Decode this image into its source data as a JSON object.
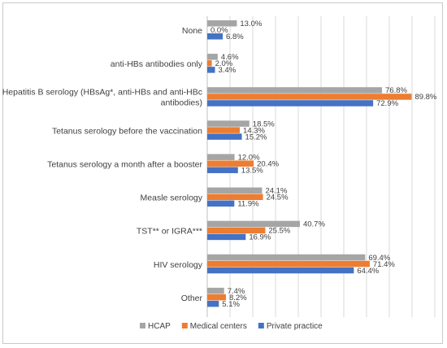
{
  "chart_data": {
    "type": "bar",
    "orientation": "horizontal",
    "title": "",
    "xlabel": "",
    "ylabel": "",
    "xlim": [
      0,
      100
    ],
    "grid": true,
    "legend_position": "bottom",
    "categories": [
      "None",
      "anti-HBs antibodies only",
      "Hepatitis B serology (HBsAg*, anti-HBs and  anti-HBc antibodies)",
      "Tetanus serology before the vaccination",
      "Tetanus serology a month after a booster",
      "Measle serology",
      "TST** or IGRA***",
      "HIV serology",
      "Other"
    ],
    "category_lines": [
      [
        "None"
      ],
      [
        "anti-HBs antibodies only"
      ],
      [
        "Hepatitis B serology (HBsAg*, anti-HBs and  anti-HBc",
        "antibodies)"
      ],
      [
        "Tetanus serology before the vaccination"
      ],
      [
        "Tetanus serology a month after a booster"
      ],
      [
        "Measle serology"
      ],
      [
        "TST** or IGRA***"
      ],
      [
        "HIV serology"
      ],
      [
        "Other"
      ]
    ],
    "series": [
      {
        "name": "HCAP",
        "color": "#a5a5a5",
        "values": [
          13.0,
          4.6,
          76.8,
          18.5,
          12.0,
          24.1,
          40.7,
          69.4,
          7.4
        ]
      },
      {
        "name": "Medical centers",
        "color": "#ed7d31",
        "values": [
          0.0,
          2.0,
          89.8,
          14.3,
          20.4,
          24.5,
          25.5,
          71.4,
          8.2
        ]
      },
      {
        "name": "Private practice",
        "color": "#4472c4",
        "values": [
          6.8,
          3.4,
          72.9,
          15.2,
          13.5,
          11.9,
          16.9,
          64.4,
          5.1
        ]
      }
    ]
  }
}
